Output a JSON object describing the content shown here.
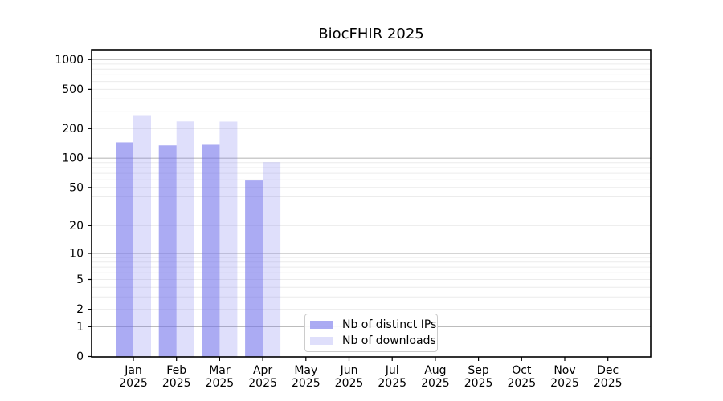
{
  "title": "BiocFHIR 2025",
  "legend": {
    "items": [
      {
        "label": "Nb of distinct IPs",
        "color": "rgba(110,110,235,0.58)"
      },
      {
        "label": "Nb of downloads",
        "color": "rgba(110,110,235,0.22)"
      }
    ],
    "position": "lower center inside plot"
  },
  "colors": {
    "distinct_ips_bar": "#a9a9f3",
    "downloads_bar": "#dcdcf8",
    "major_gridline": "#bcbcbc",
    "minor_gridline": "#ececec",
    "axis_spine": "#000000"
  },
  "chart_data": {
    "type": "bar",
    "title": "BiocFHIR 2025",
    "xlabel": "",
    "ylabel": "",
    "categories": [
      "Jan 2025",
      "Feb 2025",
      "Mar 2025",
      "Apr 2025",
      "May 2025",
      "Jun 2025",
      "Jul 2025",
      "Aug 2025",
      "Sep 2025",
      "Oct 2025",
      "Nov 2025",
      "Dec 2025"
    ],
    "series": [
      {
        "name": "Nb of distinct IPs",
        "color": "rgba(110,110,235,0.58)",
        "values": [
          145,
          135,
          137,
          59,
          null,
          null,
          null,
          null,
          null,
          null,
          null,
          null
        ]
      },
      {
        "name": "Nb of downloads",
        "color": "rgba(110,110,235,0.22)",
        "values": [
          269,
          237,
          236,
          91,
          null,
          null,
          null,
          null,
          null,
          null,
          null,
          null
        ]
      }
    ],
    "yscale": "log1p (y position proportional to log10(1+value))",
    "yticks": [
      1000,
      500,
      200,
      100,
      50,
      20,
      10,
      5,
      2,
      1,
      0
    ],
    "ylim": [
      0,
      1250
    ],
    "grid": "horizontal, major at 1/10/100/1000, minor at 2-9 multiples",
    "legend_position": "inside lower-center"
  }
}
